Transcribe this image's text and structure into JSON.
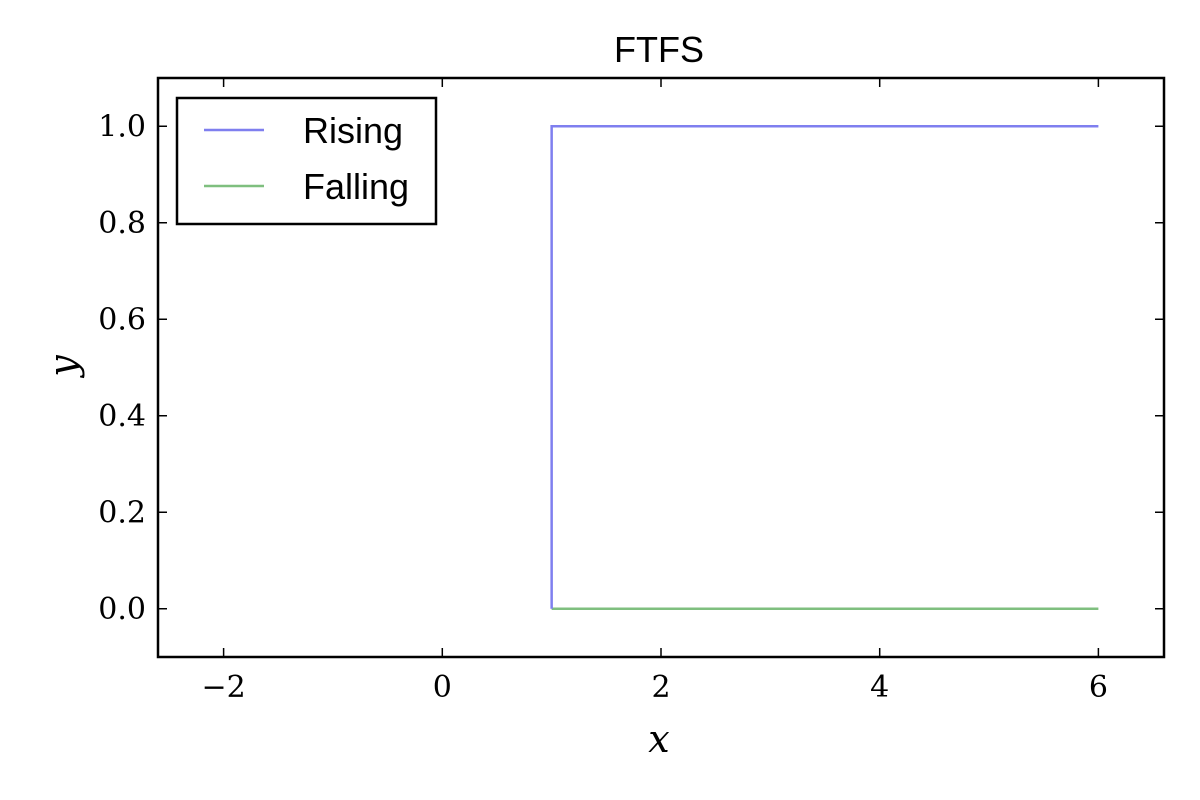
{
  "chart_data": {
    "type": "line",
    "title": "FTFS",
    "xlabel": "x",
    "ylabel": "y",
    "xlim": [
      -2.6,
      6.6
    ],
    "ylim": [
      -0.1,
      1.1
    ],
    "xticks": [
      -2,
      0,
      2,
      4,
      6
    ],
    "xtick_labels": [
      "−2",
      "0",
      "2",
      "4",
      "6"
    ],
    "yticks": [
      0.0,
      0.2,
      0.4,
      0.6,
      0.8,
      1.0
    ],
    "ytick_labels": [
      "0.0",
      "0.2",
      "0.4",
      "0.6",
      "0.8",
      "1.0"
    ],
    "grid": false,
    "legend": {
      "position": "top-left"
    },
    "series": [
      {
        "name": "Rising",
        "color": "#7f7fef",
        "x": [
          1,
          1,
          6
        ],
        "y": [
          0,
          1,
          1
        ]
      },
      {
        "name": "Falling",
        "color": "#7fbf7f",
        "x": [
          1,
          6
        ],
        "y": [
          0,
          0
        ]
      }
    ]
  }
}
